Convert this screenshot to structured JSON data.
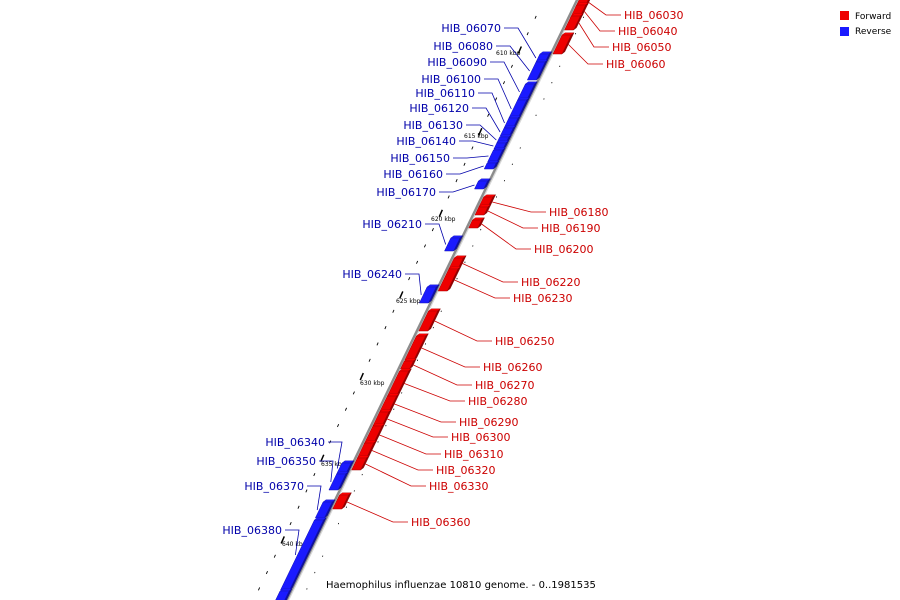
{
  "legend": {
    "forward": {
      "label": "Forward",
      "color": "#ee0000"
    },
    "reverse": {
      "label": "Reverse",
      "color": "#1a1aff"
    }
  },
  "caption": "Haemophilus influenzae 10810 genome. - 0..1981535",
  "colors": {
    "forward_label": "#cc0000",
    "reverse_label": "#0000aa",
    "backbone": "#8c8c8c"
  },
  "ticks": [
    {
      "label": "610 kbp",
      "kbp": 610
    },
    {
      "label": "615 kbp",
      "kbp": 615
    },
    {
      "label": "620 kbp",
      "kbp": 620
    },
    {
      "label": "625 kbp",
      "kbp": 625
    },
    {
      "label": "630 kbp",
      "kbp": 630
    },
    {
      "label": "635 kbp",
      "kbp": 635
    },
    {
      "label": "640 kbp",
      "kbp": 640
    }
  ],
  "genes": [
    {
      "name": "HIB_06030",
      "strand": "forward"
    },
    {
      "name": "HIB_06040",
      "strand": "forward"
    },
    {
      "name": "HIB_06050",
      "strand": "forward"
    },
    {
      "name": "HIB_06060",
      "strand": "forward"
    },
    {
      "name": "HIB_06070",
      "strand": "reverse"
    },
    {
      "name": "HIB_06080",
      "strand": "reverse"
    },
    {
      "name": "HIB_06090",
      "strand": "reverse"
    },
    {
      "name": "HIB_06100",
      "strand": "reverse"
    },
    {
      "name": "HIB_06110",
      "strand": "reverse"
    },
    {
      "name": "HIB_06120",
      "strand": "reverse"
    },
    {
      "name": "HIB_06130",
      "strand": "reverse"
    },
    {
      "name": "HIB_06140",
      "strand": "reverse"
    },
    {
      "name": "HIB_06150",
      "strand": "reverse"
    },
    {
      "name": "HIB_06160",
      "strand": "reverse"
    },
    {
      "name": "HIB_06170",
      "strand": "reverse"
    },
    {
      "name": "HIB_06180",
      "strand": "forward"
    },
    {
      "name": "HIB_06190",
      "strand": "forward"
    },
    {
      "name": "HIB_06200",
      "strand": "forward"
    },
    {
      "name": "HIB_06210",
      "strand": "reverse"
    },
    {
      "name": "HIB_06220",
      "strand": "forward"
    },
    {
      "name": "HIB_06230",
      "strand": "forward"
    },
    {
      "name": "HIB_06240",
      "strand": "reverse"
    },
    {
      "name": "HIB_06250",
      "strand": "forward"
    },
    {
      "name": "HIB_06260",
      "strand": "forward"
    },
    {
      "name": "HIB_06270",
      "strand": "forward"
    },
    {
      "name": "HIB_06280",
      "strand": "forward"
    },
    {
      "name": "HIB_06290",
      "strand": "forward"
    },
    {
      "name": "HIB_06300",
      "strand": "forward"
    },
    {
      "name": "HIB_06310",
      "strand": "forward"
    },
    {
      "name": "HIB_06320",
      "strand": "forward"
    },
    {
      "name": "HIB_06330",
      "strand": "forward"
    },
    {
      "name": "HIB_06340",
      "strand": "reverse"
    },
    {
      "name": "HIB_06350",
      "strand": "reverse"
    },
    {
      "name": "HIB_06360",
      "strand": "forward"
    },
    {
      "name": "HIB_06370",
      "strand": "reverse"
    },
    {
      "name": "HIB_06380",
      "strand": "reverse"
    }
  ]
}
